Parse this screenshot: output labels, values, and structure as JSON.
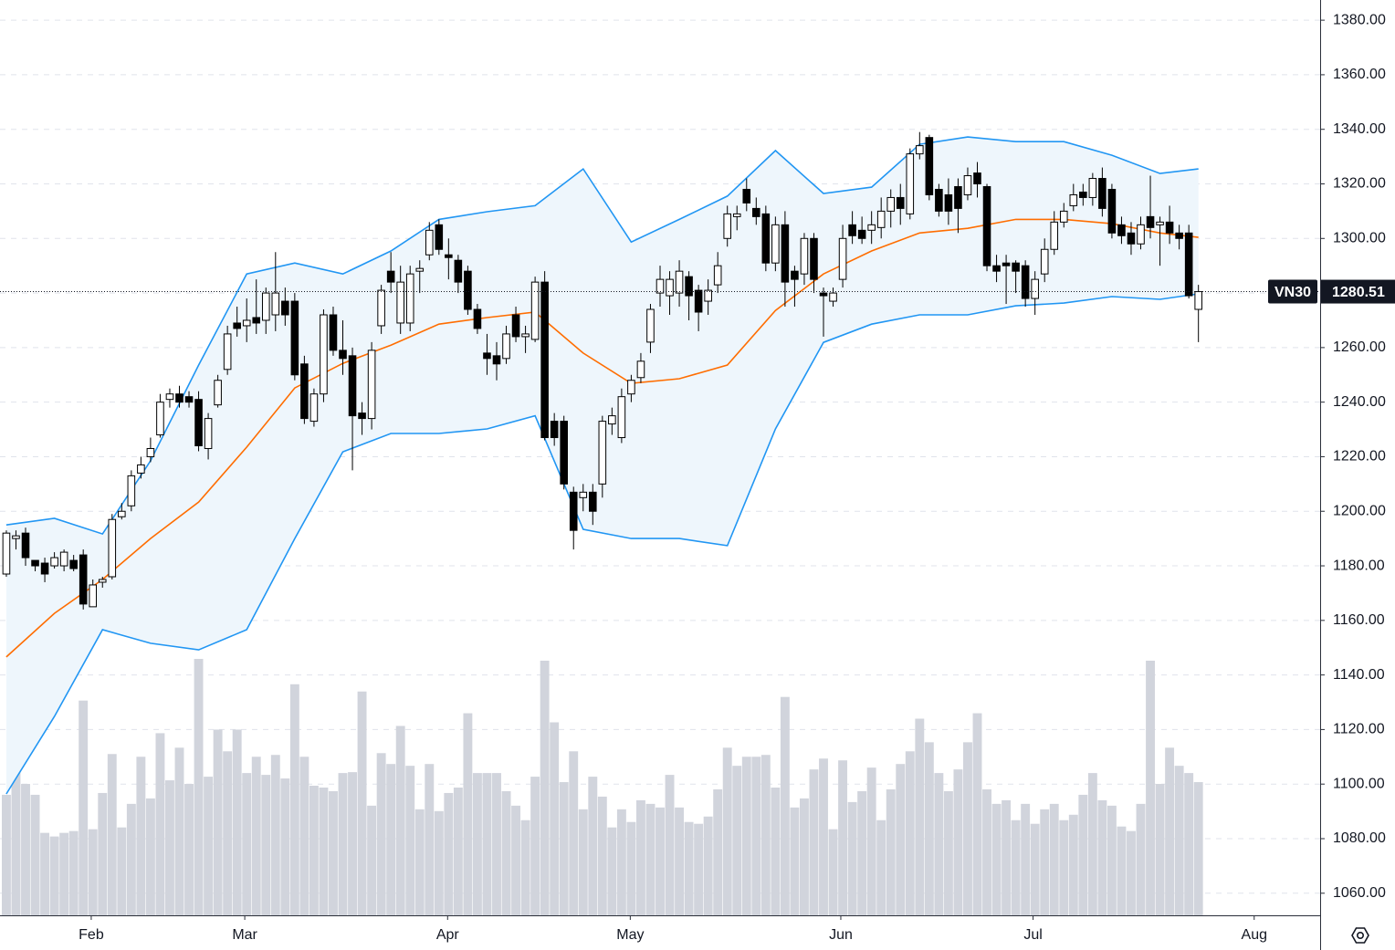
{
  "chart_data": {
    "type": "candlestick",
    "symbol": "VN30",
    "open": [
      1177,
      1190,
      1192,
      1182,
      1181,
      1180,
      1180,
      1182,
      1184,
      1165,
      1174,
      1176,
      1198,
      1202,
      1214,
      1220,
      1228,
      1241,
      1243,
      1242,
      1241,
      1223,
      1239,
      1252,
      1269,
      1268,
      1271,
      1270,
      1272,
      1277,
      1277,
      1254,
      1233,
      1243,
      1272,
      1259,
      1257,
      1236,
      1234,
      1268,
      1288,
      1269,
      1269,
      1288,
      1294,
      1305,
      1294,
      1292,
      1288,
      1274,
      1258,
      1257,
      1256,
      1272,
      1264,
      1263,
      1284,
      1233,
      1233,
      1207,
      1205,
      1207,
      1210,
      1232,
      1227,
      1243,
      1249,
      1262,
      1280,
      1279,
      1280,
      1286,
      1281,
      1277,
      1283,
      1300,
      1308,
      1318,
      1311,
      1309,
      1291,
      1305,
      1288,
      1287,
      1300,
      1280,
      1277,
      1285,
      1305,
      1303,
      1303,
      1304,
      1310,
      1315,
      1309,
      1331,
      1337,
      1318,
      1316,
      1319,
      1316,
      1324,
      1319,
      1290,
      1291,
      1291,
      1290,
      1278,
      1287,
      1296,
      1306,
      1312,
      1317,
      1315,
      1322,
      1318,
      1305,
      1302,
      1298,
      1308,
      1305,
      1306,
      1302,
      1302,
      1274
    ],
    "high": [
      1193,
      1193,
      1194,
      1182,
      1183,
      1185,
      1186,
      1184,
      1186,
      1175,
      1176,
      1199,
      1203,
      1215,
      1220,
      1227,
      1243,
      1245,
      1246,
      1244,
      1244,
      1236,
      1250,
      1268,
      1275,
      1278,
      1285,
      1282,
      1295,
      1282,
      1280,
      1257,
      1245,
      1274,
      1275,
      1270,
      1260,
      1240,
      1262,
      1283,
      1295,
      1290,
      1290,
      1292,
      1306,
      1307,
      1300,
      1294,
      1290,
      1276,
      1265,
      1262,
      1268,
      1275,
      1268,
      1286,
      1288,
      1236,
      1235,
      1209,
      1210,
      1210,
      1235,
      1238,
      1245,
      1250,
      1258,
      1276,
      1290,
      1288,
      1292,
      1288,
      1283,
      1285,
      1295,
      1312,
      1312,
      1322,
      1315,
      1312,
      1308,
      1310,
      1290,
      1302,
      1302,
      1282,
      1282,
      1305,
      1310,
      1308,
      1310,
      1315,
      1318,
      1320,
      1333,
      1339,
      1338,
      1320,
      1322,
      1322,
      1326,
      1328,
      1320,
      1294,
      1294,
      1292,
      1292,
      1288,
      1300,
      1310,
      1313,
      1320,
      1320,
      1324,
      1326,
      1320,
      1308,
      1306,
      1308,
      1323,
      1308,
      1312,
      1305,
      1305,
      1283
    ],
    "low": [
      1176,
      1186,
      1180,
      1178,
      1174,
      1179,
      1178,
      1178,
      1164,
      1165,
      1172,
      1175,
      1197,
      1200,
      1212,
      1218,
      1227,
      1238,
      1238,
      1238,
      1222,
      1219,
      1238,
      1250,
      1264,
      1262,
      1265,
      1265,
      1266,
      1268,
      1248,
      1232,
      1231,
      1240,
      1257,
      1250,
      1215,
      1228,
      1230,
      1265,
      1280,
      1265,
      1266,
      1280,
      1292,
      1294,
      1285,
      1280,
      1272,
      1265,
      1250,
      1248,
      1254,
      1262,
      1258,
      1262,
      1226,
      1224,
      1208,
      1186,
      1200,
      1195,
      1205,
      1228,
      1225,
      1240,
      1247,
      1258,
      1275,
      1272,
      1275,
      1270,
      1266,
      1272,
      1280,
      1297,
      1303,
      1310,
      1305,
      1288,
      1288,
      1275,
      1275,
      1283,
      1280,
      1264,
      1275,
      1282,
      1298,
      1298,
      1298,
      1300,
      1304,
      1305,
      1307,
      1329,
      1314,
      1308,
      1305,
      1302,
      1314,
      1315,
      1288,
      1284,
      1276,
      1280,
      1275,
      1272,
      1284,
      1294,
      1304,
      1310,
      1312,
      1312,
      1308,
      1300,
      1298,
      1294,
      1296,
      1300,
      1290,
      1298,
      1296,
      1278,
      1262
    ],
    "close": [
      1192,
      1191,
      1183,
      1180,
      1177,
      1183,
      1185,
      1179,
      1166,
      1173,
      1175,
      1197,
      1200,
      1213,
      1217,
      1223,
      1240,
      1243,
      1240,
      1240,
      1224,
      1234,
      1248,
      1265,
      1267,
      1270,
      1269,
      1280,
      1280,
      1272,
      1250,
      1234,
      1243,
      1272,
      1259,
      1256,
      1235,
      1234,
      1259,
      1281,
      1284,
      1284,
      1287,
      1289,
      1303,
      1296,
      1293,
      1284,
      1274,
      1267,
      1256,
      1254,
      1265,
      1264,
      1265,
      1284,
      1227,
      1227,
      1210,
      1193,
      1207,
      1200,
      1233,
      1235,
      1242,
      1248,
      1255,
      1274,
      1285,
      1285,
      1288,
      1279,
      1273,
      1281,
      1290,
      1309,
      1309,
      1313,
      1308,
      1291,
      1305,
      1284,
      1285,
      1300,
      1285,
      1279,
      1280,
      1300,
      1301,
      1300,
      1305,
      1310,
      1315,
      1311,
      1331,
      1334,
      1316,
      1310,
      1310,
      1311,
      1323,
      1320,
      1290,
      1288,
      1290,
      1288,
      1278,
      1285,
      1296,
      1306,
      1310,
      1316,
      1315,
      1322,
      1311,
      1302,
      1301,
      1298,
      1305,
      1304,
      1306,
      1302,
      1300,
      1279,
      1280.51
    ],
    "volume": [
      133,
      158,
      145,
      133,
      91,
      87,
      91,
      93,
      237,
      95,
      135,
      178,
      97,
      123,
      175,
      129,
      201,
      149,
      185,
      145,
      283,
      153,
      205,
      181,
      205,
      157,
      175,
      155,
      177,
      151,
      255,
      175,
      143,
      141,
      137,
      157,
      158,
      247,
      121,
      179,
      167,
      209,
      165,
      117,
      167,
      115,
      135,
      141,
      223,
      157,
      157,
      157,
      137,
      121,
      105,
      153,
      281,
      213,
      147,
      181,
      117,
      153,
      131,
      97,
      117,
      103,
      127,
      123,
      119,
      155,
      119,
      103,
      101,
      109,
      139,
      185,
      165,
      175,
      175,
      177,
      141,
      241,
      119,
      129,
      161,
      173,
      95,
      171,
      125,
      137,
      163,
      105,
      139,
      167,
      181,
      217,
      191,
      157,
      137,
      161,
      191,
      223,
      139,
      123,
      127,
      105,
      123,
      101,
      117,
      123,
      105,
      111,
      133,
      157,
      127,
      121,
      98,
      93,
      123,
      281,
      145,
      185,
      165,
      157,
      147
    ],
    "up_color": "#ffffff",
    "down_color": "#000000",
    "volume_color": "#d1d4dc",
    "bands": {
      "x": [
        0,
        5,
        10,
        15,
        20,
        25,
        30,
        35,
        40,
        45,
        50,
        55,
        60,
        65,
        70,
        75,
        80,
        85,
        90,
        95,
        100,
        105,
        110,
        115,
        120,
        124
      ],
      "upper": [
        1195,
        1197.4,
        1191.7,
        1218.5,
        1253.6,
        1287,
        1291,
        1287,
        1295.4,
        1307,
        1309.8,
        1312,
        1325.5,
        1298.7,
        1307,
        1315.5,
        1332.2,
        1316.5,
        1318.8,
        1334.5,
        1337.2,
        1335.5,
        1335.5,
        1330.5,
        1323.8,
        1325.5
      ],
      "middle": [
        1146.6,
        1162.6,
        1175,
        1190,
        1203.4,
        1223.5,
        1245.2,
        1254.2,
        1260.9,
        1268.6,
        1271,
        1273,
        1258,
        1246.9,
        1248.6,
        1253.6,
        1273.6,
        1287,
        1295.4,
        1302,
        1303.7,
        1307,
        1307,
        1305.4,
        1302,
        1300.4
      ],
      "lower": [
        1096.4,
        1124.8,
        1156.6,
        1151.6,
        1149.2,
        1156.6,
        1190,
        1221.8,
        1228.5,
        1228.5,
        1230.2,
        1235,
        1193.4,
        1190,
        1190,
        1187.4,
        1230.2,
        1261.9,
        1268.6,
        1272,
        1272,
        1275.3,
        1276.3,
        1278.7,
        1277.7,
        1279.7
      ],
      "band_color": "#2196f3",
      "middle_color": "#ff6d00",
      "fill_color": "#eef6fc"
    },
    "xlim": [
      -0.66,
      136.66
    ],
    "xticks": [
      {
        "value": 8.83,
        "label": "Feb"
      },
      {
        "value": 24.8,
        "label": "Mar"
      },
      {
        "value": 45.9,
        "label": "Apr"
      },
      {
        "value": 64.9,
        "label": "May"
      },
      {
        "value": 86.8,
        "label": "Jun"
      },
      {
        "value": 106.8,
        "label": "Jul"
      },
      {
        "value": 129.8,
        "label": "Aug"
      }
    ],
    "ylim": [
      1051.9,
      1387.4
    ],
    "yticks": [
      {
        "value": 1060,
        "label": "1060.00"
      },
      {
        "value": 1080,
        "label": "1080.00"
      },
      {
        "value": 1100,
        "label": "1100.00"
      },
      {
        "value": 1120,
        "label": "1120.00"
      },
      {
        "value": 1140,
        "label": "1140.00"
      },
      {
        "value": 1160,
        "label": "1160.00"
      },
      {
        "value": 1180,
        "label": "1180.00"
      },
      {
        "value": 1200,
        "label": "1200.00"
      },
      {
        "value": 1220,
        "label": "1220.00"
      },
      {
        "value": 1240,
        "label": "1240.00"
      },
      {
        "value": 1260,
        "label": "1260.00"
      },
      {
        "value": 1280,
        "label": "1280.00"
      },
      {
        "value": 1300,
        "label": "1300.00"
      },
      {
        "value": 1320,
        "label": "1320.00"
      },
      {
        "value": 1340,
        "label": "1340.00"
      },
      {
        "value": 1360,
        "label": "1360.00"
      },
      {
        "value": 1380,
        "label": "1380.00"
      }
    ],
    "grid": true
  }
}
